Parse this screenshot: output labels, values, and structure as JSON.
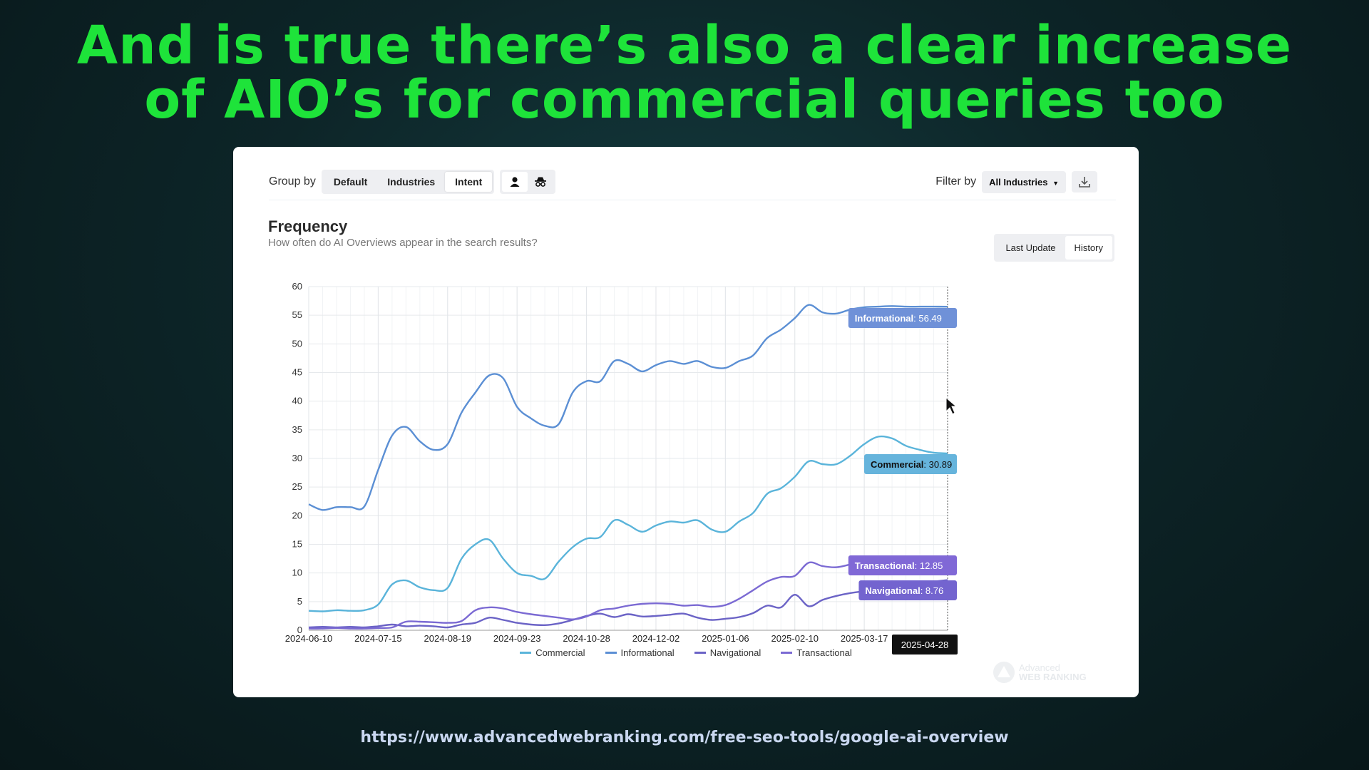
{
  "headline": {
    "line1": "And is true there’s also a clear increase",
    "line2": "of AIO’s for commercial queries too"
  },
  "toolbar": {
    "group_by_label": "Group by",
    "group_tabs": [
      "Default",
      "Industries",
      "Intent"
    ],
    "active_group_tab": "Intent",
    "icon_buttons": [
      "person-icon",
      "incognito-icon"
    ],
    "filter_label": "Filter by",
    "filter_value": "All Industries",
    "download_icon": "download-icon"
  },
  "panel": {
    "title": "Frequency",
    "subtitle": "How often do AI Overviews appear in the search results?",
    "view_tabs": [
      "Last Update",
      "History"
    ],
    "active_view_tab": "History"
  },
  "url": "https://www.advancedwebranking.com/free-seo-tools/google-ai-overview",
  "watermark": {
    "line1": "Advanced",
    "line2": "WEB RANKING"
  },
  "chart_data": {
    "type": "line",
    "x_ticks": [
      "2024-06-10",
      "2024-07-15",
      "2024-08-19",
      "2024-09-23",
      "2024-10-28",
      "2024-12-02",
      "2025-01-06",
      "2025-02-10",
      "2025-03-17"
    ],
    "hover_x": "2025-04-28",
    "ylim": [
      0,
      60
    ],
    "y_ticks": [
      0,
      5,
      10,
      15,
      20,
      25,
      30,
      35,
      40,
      45,
      50,
      55,
      60
    ],
    "grid": true,
    "legend_position": "bottom",
    "x": [
      "2024-06-10",
      "2024-06-17",
      "2024-06-24",
      "2024-07-01",
      "2024-07-08",
      "2024-07-15",
      "2024-07-22",
      "2024-07-29",
      "2024-08-05",
      "2024-08-12",
      "2024-08-19",
      "2024-08-26",
      "2024-09-02",
      "2024-09-09",
      "2024-09-16",
      "2024-09-23",
      "2024-09-30",
      "2024-10-07",
      "2024-10-14",
      "2024-10-21",
      "2024-10-28",
      "2024-11-04",
      "2024-11-11",
      "2024-11-18",
      "2024-11-25",
      "2024-12-02",
      "2024-12-09",
      "2024-12-16",
      "2024-12-23",
      "2024-12-30",
      "2025-01-06",
      "2025-01-13",
      "2025-01-20",
      "2025-01-27",
      "2025-02-03",
      "2025-02-10",
      "2025-02-17",
      "2025-02-24",
      "2025-03-03",
      "2025-03-10",
      "2025-03-17",
      "2025-03-24",
      "2025-03-31",
      "2025-04-07",
      "2025-04-14",
      "2025-04-21",
      "2025-04-28"
    ],
    "series": [
      {
        "name": "Commercial",
        "color": "#5ab4da",
        "values": [
          3.4,
          3.3,
          3.5,
          3.4,
          3.5,
          4.5,
          8.0,
          8.7,
          7.5,
          7.0,
          7.4,
          12.5,
          15.0,
          15.8,
          12.5,
          10.0,
          9.5,
          9.0,
          12.0,
          14.5,
          16.0,
          16.3,
          19.2,
          18.4,
          17.2,
          18.3,
          19.0,
          18.8,
          19.2,
          17.6,
          17.2,
          19.0,
          20.5,
          23.8,
          24.8,
          26.8,
          29.5,
          29.0,
          29.0,
          30.5,
          32.5,
          33.8,
          33.5,
          32.2,
          31.5,
          31.0,
          30.89
        ]
      },
      {
        "name": "Informational",
        "color": "#5b8fd4",
        "values": [
          22.0,
          21.0,
          21.5,
          21.5,
          21.6,
          28.0,
          34.0,
          35.5,
          33.0,
          31.5,
          32.5,
          38.0,
          41.5,
          44.5,
          44.0,
          39.0,
          37.0,
          35.7,
          36.0,
          41.5,
          43.5,
          43.5,
          47.0,
          46.5,
          45.2,
          46.3,
          47.0,
          46.5,
          47.0,
          46.0,
          45.8,
          47.0,
          48.0,
          51.0,
          52.5,
          54.5,
          56.8,
          55.5,
          55.3,
          56.0,
          56.4,
          56.5,
          56.6,
          56.5,
          56.5,
          56.5,
          56.49
        ]
      },
      {
        "name": "Navigational",
        "color": "#6b63c6",
        "values": [
          0.5,
          0.6,
          0.5,
          0.6,
          0.5,
          0.7,
          1.0,
          0.7,
          0.8,
          0.7,
          0.5,
          1.0,
          1.3,
          2.2,
          1.8,
          1.3,
          1.0,
          0.9,
          1.2,
          1.8,
          2.5,
          2.9,
          2.3,
          2.8,
          2.4,
          2.5,
          2.7,
          2.9,
          2.2,
          1.8,
          2.0,
          2.3,
          3.0,
          4.3,
          4.0,
          6.2,
          4.2,
          5.3,
          6.0,
          6.5,
          6.8,
          7.0,
          7.5,
          8.0,
          8.2,
          8.5,
          8.76
        ]
      },
      {
        "name": "Transactional",
        "color": "#7b6ad3",
        "values": [
          0.3,
          0.3,
          0.4,
          0.3,
          0.3,
          0.4,
          0.5,
          1.5,
          1.5,
          1.4,
          1.3,
          1.6,
          3.5,
          4.0,
          3.8,
          3.2,
          2.8,
          2.5,
          2.2,
          1.9,
          2.4,
          3.5,
          3.8,
          4.3,
          4.6,
          4.7,
          4.6,
          4.3,
          4.4,
          4.1,
          4.4,
          5.5,
          7.0,
          8.5,
          9.3,
          9.5,
          11.8,
          11.2,
          11.0,
          11.5,
          12.0,
          12.5,
          12.6,
          12.7,
          12.8,
          12.8,
          12.85
        ]
      }
    ],
    "tooltips": [
      {
        "series": "Informational",
        "value": "56.49"
      },
      {
        "series": "Commercial",
        "value": "30.89"
      },
      {
        "series": "Transactional",
        "value": "12.85"
      },
      {
        "series": "Navigational",
        "value": "8.76"
      }
    ]
  }
}
